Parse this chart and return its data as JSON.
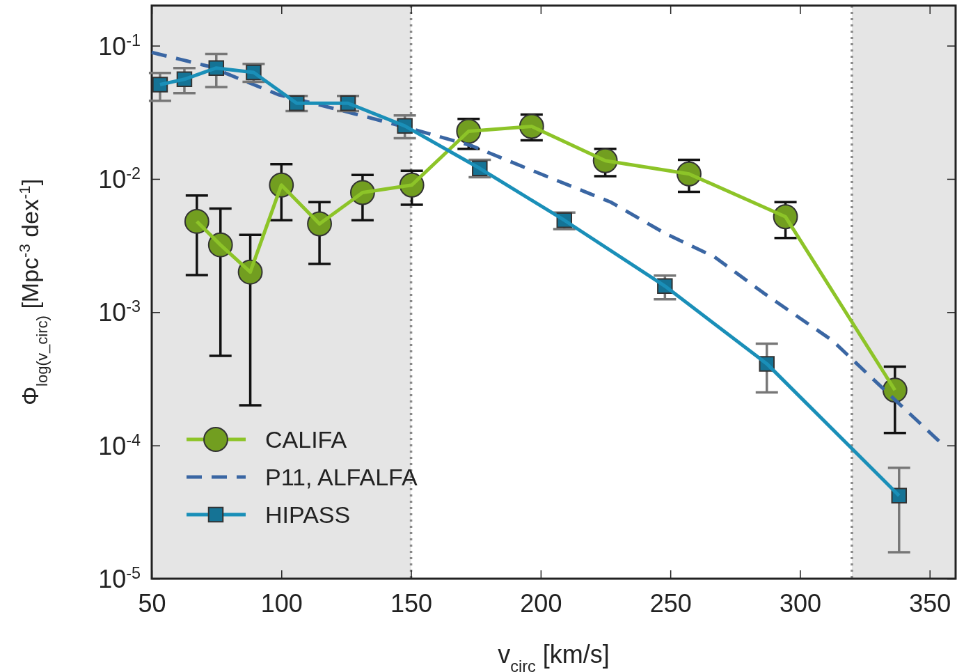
{
  "chart_data": {
    "type": "line",
    "xlabel": "v$_{circ}$ [km/s]",
    "ylabel": "Φ$_{log(v_circ)}$ [Mpc$^{-3}$ dex$^{-1}$]",
    "log": "y",
    "xlim": [
      50,
      360
    ],
    "xticks": [
      50,
      100,
      150,
      200,
      250,
      300,
      350
    ],
    "ylim": [
      1e-05,
      0.2
    ],
    "yticks": [
      {
        "value": 1e-05,
        "label": "10$^{-5}$"
      },
      {
        "value": 0.0001,
        "label": "10$^{-4}$"
      },
      {
        "value": 0.001,
        "label": "10$^{-3}$"
      },
      {
        "value": 0.01,
        "label": "10$^{-2}$"
      },
      {
        "value": 0.1,
        "label": "10$^{-1}$"
      }
    ],
    "legend": "bottom left",
    "bands": [
      {
        "axis": "x",
        "from": 50,
        "to": 150,
        "color": "#e5e5e5"
      },
      {
        "axis": "x",
        "from": 320,
        "to": 360,
        "color": "#e5e5e5"
      }
    ],
    "ref_lines": [
      {
        "axis": "x",
        "value": 150,
        "color": "#888888",
        "line_style": "dotted"
      },
      {
        "axis": "x",
        "value": 320,
        "color": "#888888",
        "line_style": "dotted"
      }
    ],
    "series": [
      {
        "name": "CALIFA",
        "color": "#8dc428",
        "marker": "circle",
        "line_style": "solid",
        "x": [
          67.4,
          76.5,
          88,
          100,
          114.7,
          131.3,
          150.3,
          172.2,
          196.5,
          224.9,
          257.2,
          294.4,
          336.6
        ],
        "values": [
          0.0048,
          0.0032,
          0.002,
          0.009,
          0.0046,
          0.0079,
          0.009,
          0.0228,
          0.0248,
          0.0137,
          0.0109,
          0.0052,
          0.00026
        ],
        "errors": [
          [
            0.0019,
            0.0075
          ],
          [
            0.00047,
            0.006
          ],
          [
            0.0002,
            0.0038
          ],
          [
            0.0049,
            0.0129
          ],
          [
            0.0023,
            0.0067
          ],
          [
            0.0049,
            0.0107
          ],
          [
            0.0064,
            0.0115
          ],
          [
            0.0168,
            0.0282
          ],
          [
            0.0195,
            0.0304
          ],
          [
            0.0105,
            0.0168
          ],
          [
            0.008,
            0.0139
          ],
          [
            0.0036,
            0.0067
          ],
          [
            0.000124,
            0.00039
          ]
        ]
      },
      {
        "name": "P11, ALFALFA",
        "color": "#3a66a3",
        "marker": "none",
        "line_style": "dashed",
        "x": [
          50,
          72,
          98.7,
          125,
          149.5,
          173.5,
          200,
          227,
          248,
          267,
          285.8,
          312.6,
          336.6,
          354
        ],
        "values": [
          0.089,
          0.07,
          0.043,
          0.032,
          0.024,
          0.0177,
          0.0109,
          0.0067,
          0.0039,
          0.0026,
          0.0014,
          0.00061,
          0.00022,
          0.000106
        ]
      },
      {
        "name": "HIPASS",
        "color": "#1a8fb8",
        "marker": "square",
        "line_style": "solid",
        "x": [
          53.2,
          62.6,
          74.9,
          89.3,
          105.9,
          125.7,
          147.6,
          176.5,
          209.1,
          247.9,
          287.2,
          338.2
        ],
        "values": [
          0.051,
          0.056,
          0.068,
          0.063,
          0.037,
          0.037,
          0.025,
          0.012,
          0.0049,
          0.00157,
          0.00041,
          4.2e-05
        ],
        "errors": [
          [
            0.0386,
            0.0625
          ],
          [
            0.044,
            0.068
          ],
          [
            0.049,
            0.0866
          ],
          [
            0.0535,
            0.073
          ],
          [
            0.0323,
            0.042
          ],
          [
            0.0323,
            0.042
          ],
          [
            0.0202,
            0.03
          ],
          [
            0.0103,
            0.0139
          ],
          [
            0.0042,
            0.0056
          ],
          [
            0.00125,
            0.00188
          ],
          [
            0.00025,
            0.00058
          ],
          [
            1.58e-05,
            6.79e-05
          ]
        ]
      }
    ]
  }
}
